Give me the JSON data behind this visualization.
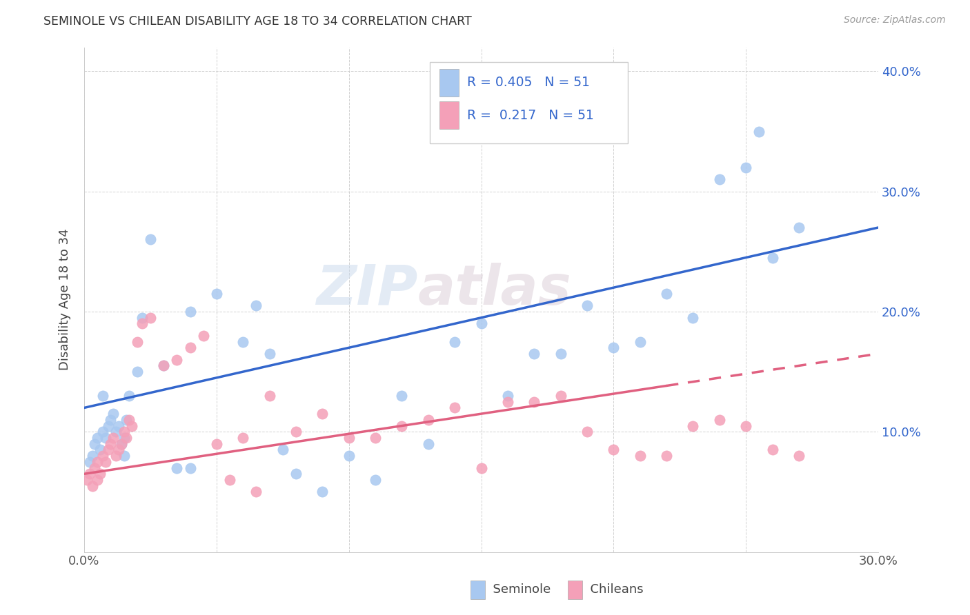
{
  "title": "SEMINOLE VS CHILEAN DISABILITY AGE 18 TO 34 CORRELATION CHART",
  "source": "Source: ZipAtlas.com",
  "ylabel": "Disability Age 18 to 34",
  "xlim": [
    0.0,
    0.3
  ],
  "ylim": [
    0.0,
    0.42
  ],
  "seminole_R": 0.405,
  "seminole_N": 51,
  "chilean_R": 0.217,
  "chilean_N": 51,
  "seminole_color": "#A8C8F0",
  "chilean_color": "#F4A0B8",
  "trend_seminole_color": "#3366CC",
  "trend_chilean_color": "#E06080",
  "legend_text_color": "#3366CC",
  "right_axis_color": "#3366CC",
  "seminole_x": [
    0.002,
    0.003,
    0.004,
    0.005,
    0.006,
    0.007,
    0.007,
    0.008,
    0.009,
    0.01,
    0.011,
    0.012,
    0.013,
    0.014,
    0.015,
    0.015,
    0.016,
    0.017,
    0.02,
    0.022,
    0.025,
    0.03,
    0.035,
    0.04,
    0.04,
    0.05,
    0.06,
    0.065,
    0.07,
    0.075,
    0.08,
    0.09,
    0.1,
    0.11,
    0.12,
    0.13,
    0.14,
    0.15,
    0.16,
    0.17,
    0.18,
    0.19,
    0.2,
    0.21,
    0.22,
    0.23,
    0.24,
    0.25,
    0.255,
    0.26,
    0.27
  ],
  "seminole_y": [
    0.075,
    0.08,
    0.09,
    0.095,
    0.085,
    0.1,
    0.13,
    0.095,
    0.105,
    0.11,
    0.115,
    0.1,
    0.105,
    0.09,
    0.08,
    0.095,
    0.11,
    0.13,
    0.15,
    0.195,
    0.26,
    0.155,
    0.07,
    0.07,
    0.2,
    0.215,
    0.175,
    0.205,
    0.165,
    0.085,
    0.065,
    0.05,
    0.08,
    0.06,
    0.13,
    0.09,
    0.175,
    0.19,
    0.13,
    0.165,
    0.165,
    0.205,
    0.17,
    0.175,
    0.215,
    0.195,
    0.31,
    0.32,
    0.35,
    0.245,
    0.27
  ],
  "chilean_x": [
    0.001,
    0.002,
    0.003,
    0.004,
    0.005,
    0.005,
    0.006,
    0.007,
    0.008,
    0.009,
    0.01,
    0.011,
    0.012,
    0.013,
    0.014,
    0.015,
    0.016,
    0.017,
    0.018,
    0.02,
    0.022,
    0.025,
    0.03,
    0.035,
    0.04,
    0.045,
    0.05,
    0.055,
    0.06,
    0.065,
    0.07,
    0.08,
    0.09,
    0.1,
    0.11,
    0.12,
    0.13,
    0.14,
    0.15,
    0.16,
    0.17,
    0.18,
    0.19,
    0.2,
    0.21,
    0.22,
    0.23,
    0.24,
    0.25,
    0.26,
    0.27
  ],
  "chilean_y": [
    0.06,
    0.065,
    0.055,
    0.07,
    0.06,
    0.075,
    0.065,
    0.08,
    0.075,
    0.085,
    0.09,
    0.095,
    0.08,
    0.085,
    0.09,
    0.1,
    0.095,
    0.11,
    0.105,
    0.175,
    0.19,
    0.195,
    0.155,
    0.16,
    0.17,
    0.18,
    0.09,
    0.06,
    0.095,
    0.05,
    0.13,
    0.1,
    0.115,
    0.095,
    0.095,
    0.105,
    0.11,
    0.12,
    0.07,
    0.125,
    0.125,
    0.13,
    0.1,
    0.085,
    0.08,
    0.08,
    0.105,
    0.11,
    0.105,
    0.085,
    0.08
  ],
  "trend_sem_x0": 0.0,
  "trend_sem_y0": 0.12,
  "trend_sem_x1": 0.3,
  "trend_sem_y1": 0.27,
  "trend_chi_x0": 0.0,
  "trend_chi_y0": 0.065,
  "trend_chi_x1": 0.3,
  "trend_chi_y1": 0.165,
  "trend_chi_dash_start": 0.22
}
